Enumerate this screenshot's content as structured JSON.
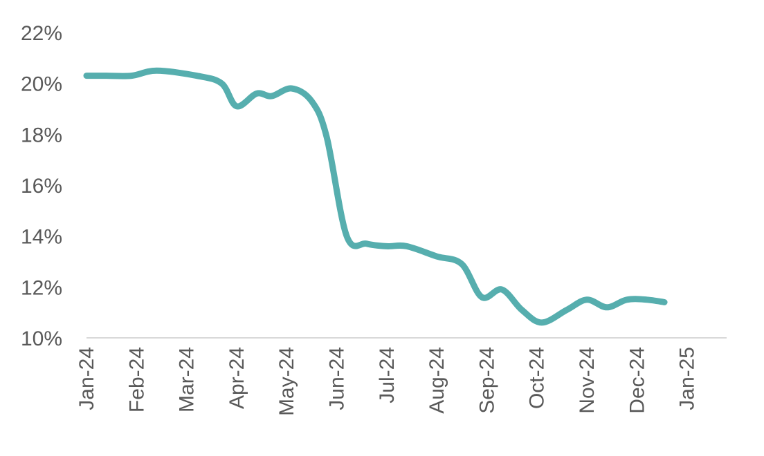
{
  "chart_data": {
    "type": "line",
    "title": "",
    "xlabel": "",
    "ylabel": "",
    "grid": false,
    "legend": "none",
    "x_ticks": [
      "Jan-24",
      "Feb-24",
      "Mar-24",
      "Apr-24",
      "May-24",
      "Jun-24",
      "Jul-24",
      "Aug-24",
      "Sep-24",
      "Oct-24",
      "Nov-24",
      "Dec-24",
      "Jan-25"
    ],
    "y_ticks": [
      {
        "value": 10,
        "label": "10%"
      },
      {
        "value": 12,
        "label": "12%"
      },
      {
        "value": 14,
        "label": "14%"
      },
      {
        "value": 16,
        "label": "16%"
      },
      {
        "value": 18,
        "label": "18%"
      },
      {
        "value": 20,
        "label": "20%"
      },
      {
        "value": 22,
        "label": "22%"
      }
    ],
    "ylim": [
      10,
      22
    ],
    "xlim": [
      0,
      12.6
    ],
    "series": [
      {
        "color": "#56aeae",
        "points": [
          {
            "x": 0.0,
            "y": 20.3
          },
          {
            "x": 0.4,
            "y": 20.3
          },
          {
            "x": 0.9,
            "y": 20.3
          },
          {
            "x": 1.4,
            "y": 20.5
          },
          {
            "x": 2.2,
            "y": 20.3
          },
          {
            "x": 2.7,
            "y": 20.0
          },
          {
            "x": 3.0,
            "y": 19.1
          },
          {
            "x": 3.4,
            "y": 19.6
          },
          {
            "x": 3.7,
            "y": 19.5
          },
          {
            "x": 4.1,
            "y": 19.8
          },
          {
            "x": 4.5,
            "y": 19.3
          },
          {
            "x": 4.8,
            "y": 17.9
          },
          {
            "x": 5.2,
            "y": 14.0
          },
          {
            "x": 5.6,
            "y": 13.7
          },
          {
            "x": 6.0,
            "y": 13.6
          },
          {
            "x": 6.4,
            "y": 13.6
          },
          {
            "x": 7.0,
            "y": 13.2
          },
          {
            "x": 7.5,
            "y": 12.9
          },
          {
            "x": 7.9,
            "y": 11.6
          },
          {
            "x": 8.3,
            "y": 11.9
          },
          {
            "x": 8.7,
            "y": 11.1
          },
          {
            "x": 9.1,
            "y": 10.6
          },
          {
            "x": 9.6,
            "y": 11.1
          },
          {
            "x": 10.0,
            "y": 11.5
          },
          {
            "x": 10.4,
            "y": 11.2
          },
          {
            "x": 10.8,
            "y": 11.5
          },
          {
            "x": 11.2,
            "y": 11.5
          },
          {
            "x": 11.55,
            "y": 11.4
          }
        ]
      }
    ]
  }
}
